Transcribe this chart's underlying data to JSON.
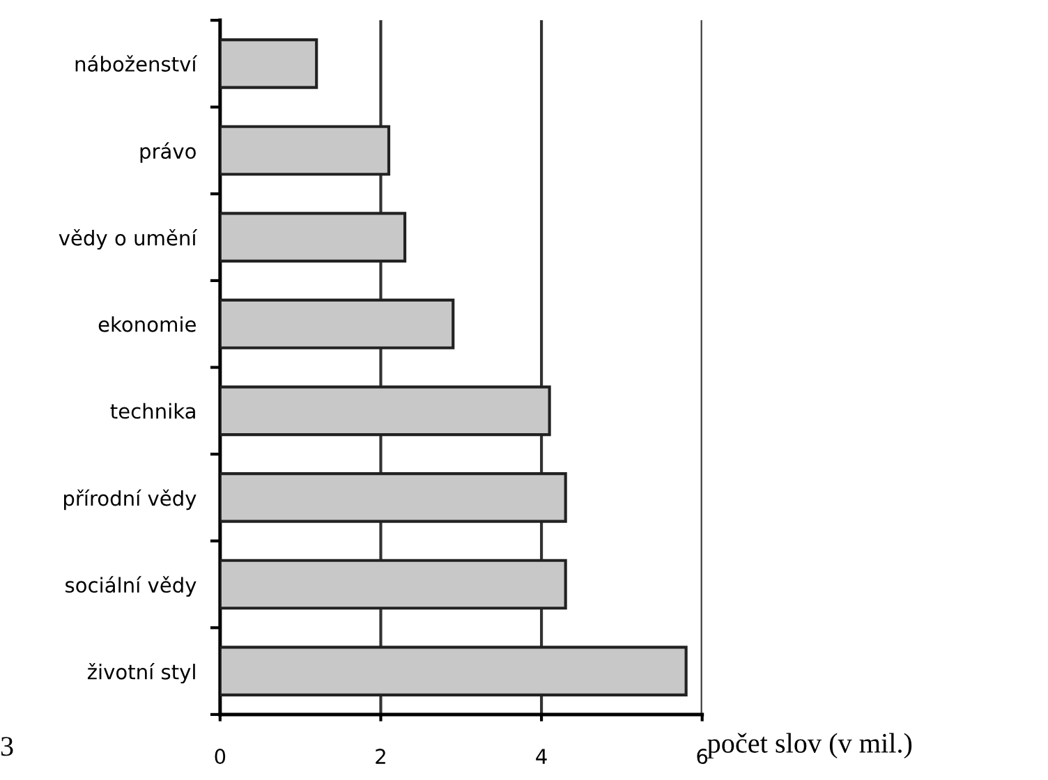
{
  "chart_data": {
    "type": "bar",
    "orientation": "horizontal",
    "categories": [
      "náboženství",
      "právo",
      "vědy o umění",
      "ekonomie",
      "technika",
      "přírodní vědy",
      "sociální vědy",
      "životní styl"
    ],
    "values": [
      1.2,
      2.1,
      2.3,
      2.9,
      4.1,
      4.3,
      4.3,
      5.8
    ],
    "color": "#c8c8c8",
    "xlim": [
      0,
      6
    ],
    "xticks": [
      0,
      2,
      4,
      6
    ],
    "grid": "x",
    "xlabel": "počet slov (v mil.)",
    "annotations": [
      "3"
    ]
  }
}
